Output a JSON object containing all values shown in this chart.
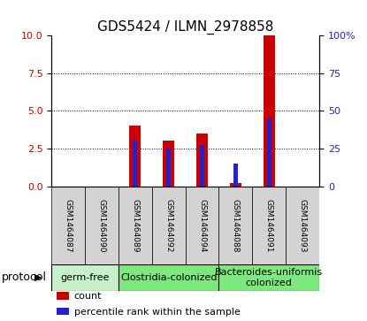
{
  "title": "GDS5424 / ILMN_2978858",
  "samples": [
    "GSM1464087",
    "GSM1464090",
    "GSM1464089",
    "GSM1464092",
    "GSM1464094",
    "GSM1464088",
    "GSM1464091",
    "GSM1464093"
  ],
  "counts": [
    0.0,
    0.0,
    4.0,
    3.0,
    3.5,
    0.2,
    10.0,
    0.0
  ],
  "percentiles": [
    0.0,
    0.0,
    30.0,
    25.0,
    27.0,
    15.0,
    45.0,
    0.0
  ],
  "red_color": "#cc0000",
  "blue_color": "#2222cc",
  "left_ylim": [
    0,
    10
  ],
  "right_ylim": [
    0,
    100
  ],
  "left_yticks": [
    0,
    2.5,
    5,
    7.5,
    10
  ],
  "right_yticks": [
    0,
    25,
    50,
    75,
    100
  ],
  "right_yticklabels": [
    "0",
    "25",
    "50",
    "75",
    "100%"
  ],
  "groups": [
    {
      "label": "germ-free",
      "start": 0,
      "end": 2,
      "color": "#c8f0c8"
    },
    {
      "label": "Clostridia-colonized",
      "start": 2,
      "end": 5,
      "color": "#7de87d"
    },
    {
      "label": "Bacteroides-uniformis\ncolonized",
      "start": 5,
      "end": 8,
      "color": "#7de87d"
    }
  ],
  "protocol_label": "protocol",
  "legend_items": [
    {
      "color": "#cc0000",
      "label": "count"
    },
    {
      "color": "#2222cc",
      "label": "percentile rank within the sample"
    }
  ],
  "bar_width": 0.35,
  "blue_bar_width": 0.12,
  "tick_label_color_left": "#cc0000",
  "tick_label_color_right": "#2222cc",
  "sample_box_color": "#d3d3d3",
  "title_fontsize": 11,
  "tick_fontsize": 8,
  "sample_fontsize": 6.5,
  "group_fontsize": 8,
  "legend_fontsize": 8,
  "protocol_fontsize": 9
}
